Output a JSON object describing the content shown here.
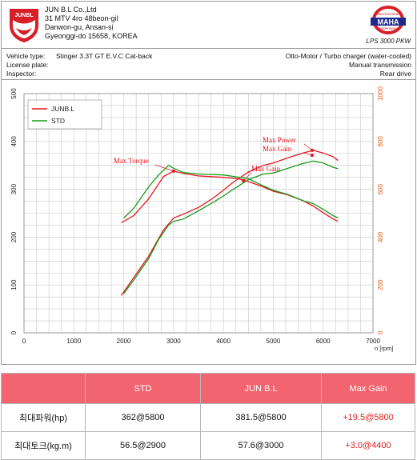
{
  "header": {
    "brand_logo_text": "JUNBL",
    "company_lines": [
      "JUN B.L Co.,Ltd",
      "31 MTV 4ro 48beon-gil",
      "Danwon-gu, Ansan-si",
      "Gyeonggi-do 15658, KOREA"
    ],
    "maha_logo_top": "Maschinenbau",
    "maha_logo_bottom": "Haldenwang",
    "maha_logo_word": "MAHA",
    "maha_model": "LPS 3000 PKW"
  },
  "info": {
    "vehicle_type_label": "Vehicle type:",
    "vehicle_type_value": "Stinger 3.3T GT E.V.C Cat-back",
    "engine": "Otto-Motor / Turbo charger (water-cooled)",
    "license_label": "License plate:",
    "transmission": "Manual transmission",
    "inspector_label": "Inspector:",
    "drive": "Rear drive"
  },
  "chart_data": {
    "type": "line",
    "xlabel": "n [rpm]",
    "xlim": [
      0,
      7000
    ],
    "xticks": [
      0,
      1000,
      2000,
      3000,
      4000,
      5000,
      6000,
      7000
    ],
    "ylim_left": [
      0,
      500
    ],
    "yticks_left": [
      0,
      100,
      200,
      300,
      400,
      500
    ],
    "ylim_right": [
      0,
      1000
    ],
    "yticks_right": [
      0,
      200,
      400,
      600,
      800,
      1000
    ],
    "grid": true,
    "legend": {
      "position": "top-left",
      "entries": [
        {
          "name": "JUNB.L",
          "color": "#e8141e"
        },
        {
          "name": "STD",
          "color": "#1a9a1a"
        }
      ]
    },
    "series": [
      {
        "name": "JUNB.L",
        "kind": "power",
        "color": "#e8141e",
        "points": [
          [
            1950,
            78
          ],
          [
            2200,
            115
          ],
          [
            2500,
            160
          ],
          [
            2800,
            215
          ],
          [
            3000,
            240
          ],
          [
            3200,
            248
          ],
          [
            3500,
            262
          ],
          [
            3800,
            282
          ],
          [
            4000,
            298
          ],
          [
            4200,
            315
          ],
          [
            4500,
            336
          ],
          [
            4800,
            350
          ],
          [
            5000,
            355
          ],
          [
            5300,
            366
          ],
          [
            5600,
            376
          ],
          [
            5800,
            381.5
          ],
          [
            6000,
            376
          ],
          [
            6200,
            368
          ],
          [
            6300,
            360
          ]
        ]
      },
      {
        "name": "JUNB.L",
        "kind": "torque",
        "color": "#e8141e",
        "points": [
          [
            1950,
            230
          ],
          [
            2200,
            245
          ],
          [
            2500,
            280
          ],
          [
            2800,
            327
          ],
          [
            3000,
            338
          ],
          [
            3200,
            333
          ],
          [
            3500,
            328
          ],
          [
            4000,
            325
          ],
          [
            4300,
            322
          ],
          [
            4500,
            316
          ],
          [
            4800,
            305
          ],
          [
            5000,
            296
          ],
          [
            5300,
            288
          ],
          [
            5600,
            276
          ],
          [
            5800,
            265
          ],
          [
            6000,
            251
          ],
          [
            6200,
            238
          ],
          [
            6300,
            233
          ]
        ]
      },
      {
        "name": "STD",
        "kind": "power",
        "color": "#1a9a1a",
        "points": [
          [
            2000,
            82
          ],
          [
            2200,
            110
          ],
          [
            2500,
            155
          ],
          [
            2700,
            195
          ],
          [
            2900,
            225
          ],
          [
            3000,
            233
          ],
          [
            3200,
            238
          ],
          [
            3500,
            255
          ],
          [
            3800,
            273
          ],
          [
            4000,
            286
          ],
          [
            4200,
            300
          ],
          [
            4500,
            320
          ],
          [
            4800,
            332
          ],
          [
            5000,
            334
          ],
          [
            5300,
            344
          ],
          [
            5600,
            354
          ],
          [
            5800,
            359
          ],
          [
            6000,
            355
          ],
          [
            6200,
            346
          ],
          [
            6300,
            343
          ]
        ]
      },
      {
        "name": "STD",
        "kind": "torque",
        "color": "#1a9a1a",
        "points": [
          [
            2000,
            240
          ],
          [
            2200,
            260
          ],
          [
            2500,
            305
          ],
          [
            2700,
            330
          ],
          [
            2900,
            350
          ],
          [
            3000,
            344
          ],
          [
            3200,
            335
          ],
          [
            3500,
            332
          ],
          [
            4000,
            330
          ],
          [
            4200,
            327
          ],
          [
            4500,
            322
          ],
          [
            4800,
            307
          ],
          [
            5000,
            298
          ],
          [
            5300,
            289
          ],
          [
            5600,
            276
          ],
          [
            5800,
            270
          ],
          [
            6000,
            258
          ],
          [
            6200,
            245
          ],
          [
            6300,
            240
          ]
        ]
      }
    ],
    "annotations": [
      {
        "text": "Max Power",
        "point": [
          5780,
          381.5
        ],
        "color": "#e8141e"
      },
      {
        "text": "Max Gain",
        "point": [
          5780,
          371
        ],
        "color": "#e8141e"
      },
      {
        "text": "Max Torque",
        "point": [
          3000,
          338
        ],
        "color": "#e8141e"
      },
      {
        "text": "Max Gain",
        "point": [
          4400,
          318
        ],
        "color": "#e8141e"
      }
    ]
  },
  "table": {
    "headers": [
      "",
      "STD",
      "JUN B.L",
      "Max Gain"
    ],
    "rows": [
      {
        "label": "최대파워(hp)",
        "std": "362@5800",
        "junbl": "381.5@5800",
        "gain": "+19.5@5800"
      },
      {
        "label": "최대토크(kg.m)",
        "std": "56.5@2900",
        "junbl": "57.6@3000",
        "gain": "+3.0@4400"
      }
    ]
  }
}
